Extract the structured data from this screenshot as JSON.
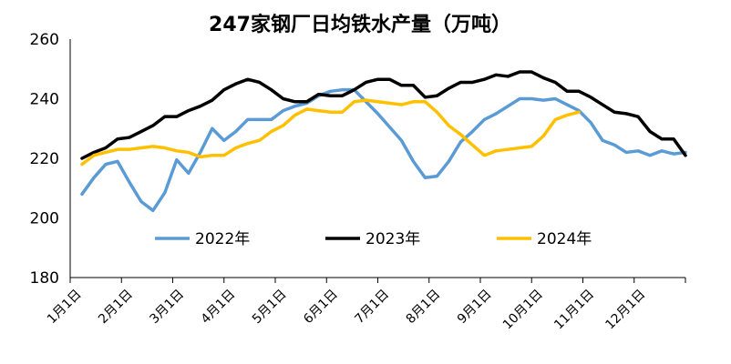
{
  "chart_data": {
    "type": "line",
    "title": "247家钢厂日均铁水产量（万吨）",
    "xlabel": "",
    "ylabel": "",
    "ylim": [
      180,
      260
    ],
    "yticks": [
      180,
      200,
      220,
      240,
      260
    ],
    "x_tick_labels": [
      "1月1日",
      "2月1日",
      "3月1日",
      "4月1日",
      "5月1日",
      "6月1日",
      "7月1日",
      "8月1日",
      "9月1日",
      "10月1日",
      "11月1日",
      "12月1日"
    ],
    "x_unit": "week of year",
    "xlim": [
      0,
      52
    ],
    "legend_position": "inside-lower-middle",
    "grid": false,
    "series": [
      {
        "name": "2022年",
        "color": "#5b9bd5",
        "x": [
          1,
          2,
          3,
          4,
          5,
          6,
          7,
          8,
          9,
          10,
          11,
          12,
          13,
          14,
          15,
          16,
          17,
          18,
          19,
          20,
          21,
          22,
          23,
          24,
          25,
          26,
          27,
          28,
          29,
          30,
          31,
          32,
          33,
          34,
          35,
          36,
          37,
          38,
          39,
          40,
          41,
          42,
          43,
          44,
          45,
          46,
          47,
          48,
          49,
          50,
          51,
          52
        ],
        "values": [
          208,
          213.5,
          218,
          219,
          212,
          205.5,
          202.5,
          208.5,
          219.5,
          215,
          222,
          230,
          226,
          229,
          233,
          233,
          233,
          236,
          237.5,
          238.5,
          241,
          242.5,
          243,
          243,
          239,
          235,
          230.5,
          226,
          219,
          213.5,
          214,
          219,
          225.5,
          229,
          233,
          235,
          237.5,
          240,
          240,
          239.5,
          240,
          238,
          236,
          232,
          226,
          224.5,
          222,
          222.5,
          221,
          222.5,
          221.5,
          222
        ]
      },
      {
        "name": "2023年",
        "color": "#000000",
        "x": [
          1,
          2,
          3,
          4,
          5,
          6,
          7,
          8,
          9,
          10,
          11,
          12,
          13,
          14,
          15,
          16,
          17,
          18,
          19,
          20,
          21,
          22,
          23,
          24,
          25,
          26,
          27,
          28,
          29,
          30,
          31,
          32,
          33,
          34,
          35,
          36,
          37,
          38,
          39,
          40,
          41,
          42,
          43,
          44,
          45,
          46,
          47,
          48,
          49,
          50,
          51,
          52
        ],
        "values": [
          220,
          222,
          223.5,
          226.5,
          227,
          229,
          231,
          234,
          234,
          236,
          237.5,
          239.5,
          243,
          245,
          246.5,
          245.5,
          243,
          240,
          239,
          239,
          241.5,
          241,
          241,
          243,
          245.5,
          246.5,
          246.5,
          244.5,
          244.5,
          240.5,
          241,
          243.5,
          245.5,
          245.5,
          246.5,
          248,
          247.5,
          249,
          249,
          247,
          245.5,
          242.5,
          242.5,
          240.5,
          238,
          235.5,
          235,
          234,
          229,
          226.5,
          226.5,
          221
        ]
      },
      {
        "name": "2024年",
        "color": "#ffc000",
        "x": [
          1,
          2,
          3,
          4,
          5,
          6,
          7,
          8,
          9,
          10,
          11,
          12,
          13,
          14,
          15,
          16,
          17,
          18,
          19,
          20,
          21,
          22,
          23,
          24,
          25,
          26,
          27,
          28,
          29,
          30,
          31,
          32,
          33,
          34,
          35,
          36,
          37,
          38,
          39,
          40,
          41,
          42,
          43
        ],
        "values": [
          218,
          221,
          222,
          223,
          223,
          223.5,
          224,
          223.5,
          222.5,
          222,
          220.5,
          221,
          221,
          223.5,
          225,
          226,
          229,
          231,
          234.5,
          236.5,
          236,
          235.5,
          235.5,
          239,
          239.5,
          239,
          238.5,
          238,
          239,
          239,
          235.5,
          231,
          228,
          224.5,
          221,
          222.5,
          223,
          223.5,
          224,
          227.5,
          233,
          234.5,
          235.5
        ]
      }
    ]
  }
}
